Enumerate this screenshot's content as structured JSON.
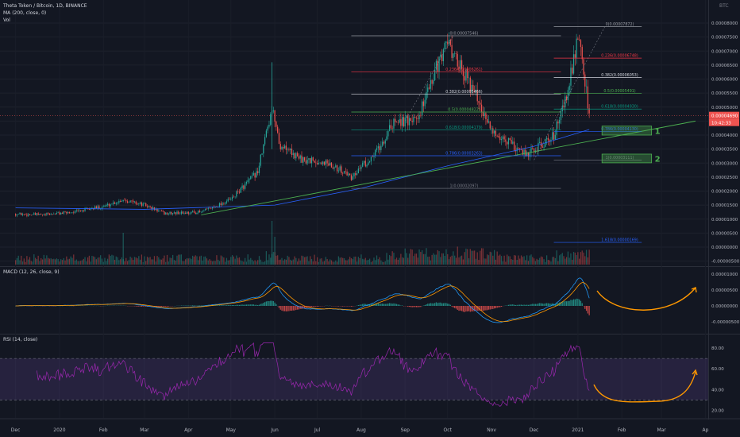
{
  "header": {
    "title": "Theta Token / Bitcoin, 1D, BINANCE",
    "ma_label": "MA (200, close, 0)",
    "vol_label": "Vol",
    "currency": "BTC"
  },
  "last_price": {
    "value": "0.00004690",
    "countdown": "10:42:33"
  },
  "chart_data": [
    {
      "type": "candlestick",
      "name": "THETABTC",
      "xlabels": [
        "Dec",
        "2020",
        "Feb",
        "Mar",
        "Apr",
        "May",
        "Jun",
        "Jul",
        "Aug",
        "Sep",
        "Oct",
        "Nov",
        "Dec",
        "2021",
        "Feb",
        "Mar",
        "Ap"
      ],
      "y_ticks": [
        "0.00008000",
        "0.00007500",
        "0.00007000",
        "0.00006500",
        "0.00006000",
        "0.00005500",
        "0.00005000",
        "0.00004500",
        "0.00004000",
        "0.00003500",
        "0.00003000",
        "0.00002500",
        "0.00002000",
        "0.00001500",
        "0.00001000",
        "0.00000500",
        "0.00000000",
        "-0.00000500"
      ],
      "price_path": [
        {
          "date": "2019-12-01",
          "value": 1.18e-05
        },
        {
          "date": "2019-12-20",
          "value": 1.15e-05
        },
        {
          "date": "2020-01-10",
          "value": 1.25e-05
        },
        {
          "date": "2020-02-01",
          "value": 1.45e-05
        },
        {
          "date": "2020-02-15",
          "value": 1.7e-05
        },
        {
          "date": "2020-03-01",
          "value": 1.5e-05
        },
        {
          "date": "2020-03-15",
          "value": 1.2e-05
        },
        {
          "date": "2020-04-10",
          "value": 1.25e-05
        },
        {
          "date": "2020-05-01",
          "value": 1.7e-05
        },
        {
          "date": "2020-05-20",
          "value": 2.7e-05
        },
        {
          "date": "2020-05-30",
          "value": 5e-05
        },
        {
          "date": "2020-06-05",
          "value": 3.6e-05
        },
        {
          "date": "2020-06-20",
          "value": 3.1e-05
        },
        {
          "date": "2020-07-10",
          "value": 3e-05
        },
        {
          "date": "2020-07-25",
          "value": 2.5e-05
        },
        {
          "date": "2020-08-10",
          "value": 3.3e-05
        },
        {
          "date": "2020-08-25",
          "value": 4.5e-05
        },
        {
          "date": "2020-09-10",
          "value": 4.5e-05
        },
        {
          "date": "2020-09-20",
          "value": 6.1e-05
        },
        {
          "date": "2020-10-01",
          "value": 7.2e-05
        },
        {
          "date": "2020-10-10",
          "value": 6.5e-05
        },
        {
          "date": "2020-10-20",
          "value": 5.5e-05
        },
        {
          "date": "2020-11-01",
          "value": 4.2e-05
        },
        {
          "date": "2020-11-15",
          "value": 3.7e-05
        },
        {
          "date": "2020-11-25",
          "value": 3.3e-05
        },
        {
          "date": "2020-12-05",
          "value": 3.6e-05
        },
        {
          "date": "2020-12-15",
          "value": 4e-05
        },
        {
          "date": "2020-12-25",
          "value": 5.6e-05
        },
        {
          "date": "2021-01-01",
          "value": 7.6e-05
        },
        {
          "date": "2021-01-05",
          "value": 6.4e-05
        },
        {
          "date": "2021-01-09",
          "value": 4.69e-05
        }
      ],
      "ma200_path": [
        {
          "date": "2019-12-01",
          "value": 1.4e-05
        },
        {
          "date": "2020-03-01",
          "value": 1.35e-05
        },
        {
          "date": "2020-06-01",
          "value": 1.5e-05
        },
        {
          "date": "2020-08-01",
          "value": 2.1e-05
        },
        {
          "date": "2020-10-01",
          "value": 2.9e-05
        },
        {
          "date": "2020-12-01",
          "value": 3.6e-05
        },
        {
          "date": "2021-01-09",
          "value": 4.2e-05
        }
      ],
      "trendline": {
        "start": {
          "date": "2020-04-10",
          "value": 1.15e-05
        },
        "end": {
          "date": "2021-03-25",
          "value": 4.5e-05
        }
      },
      "fib_set_1": [
        {
          "label": "0(0.00007546)",
          "value": 7.546e-05,
          "color": "#9598a1"
        },
        {
          "label": "0.236(0.00006261)",
          "value": 6.261e-05,
          "color": "#f23645"
        },
        {
          "label": "0.382(0.00005466)",
          "value": 5.466e-05,
          "color": "#d1d4dc"
        },
        {
          "label": "0.5(0.00004822)",
          "value": 4.822e-05,
          "color": "#4caf50"
        },
        {
          "label": "0.618(0.00004179)",
          "value": 4.179e-05,
          "color": "#089981"
        },
        {
          "label": "0.786(0.00003263)",
          "value": 3.263e-05,
          "color": "#2962ff"
        },
        {
          "label": "1(0.00002097)",
          "value": 2.097e-05,
          "color": "#787b86"
        }
      ],
      "fib_set_2": [
        {
          "label": "0(0.00007872)",
          "value": 7.872e-05,
          "color": "#9598a1"
        },
        {
          "label": "0.236(0.00006748)",
          "value": 6.748e-05,
          "color": "#f23645"
        },
        {
          "label": "0.382(0.00006053)",
          "value": 6.053e-05,
          "color": "#d1d4dc"
        },
        {
          "label": "0.5(0.00005491)",
          "value": 5.491e-05,
          "color": "#4caf50"
        },
        {
          "label": "0.618(0.00004930)",
          "value": 4.93e-05,
          "color": "#089981"
        },
        {
          "label": "0.786(0.00004130)",
          "value": 4.13e-05,
          "color": "#2962ff"
        },
        {
          "label": "1(0.00003111)",
          "value": 3.111e-05,
          "color": "#787b86"
        },
        {
          "label": "1.618(0.00000169)",
          "value": 1.69e-06,
          "color": "#2962ff"
        }
      ],
      "zones": [
        {
          "label": "1",
          "from": 4e-05,
          "to": 4.32e-05
        },
        {
          "label": "2",
          "from": 3.01e-05,
          "to": 3.32e-05
        }
      ]
    },
    {
      "type": "line",
      "name": "MACD",
      "title": "MACD (12, 26, close, 9)",
      "y_ticks": [
        "0.00001000",
        "0.00000500",
        "0.00000000",
        "-0.00000500"
      ],
      "annotation": "projected curve up"
    },
    {
      "type": "line",
      "name": "RSI",
      "title": "RSI (14, close)",
      "y_ticks": [
        "80.00",
        "60.00",
        "40.00",
        "20.00"
      ],
      "bands": [
        70,
        30
      ],
      "annotation": "projected curve up"
    }
  ],
  "colors": {
    "up": "#26a69a",
    "down": "#ef5350",
    "ma": "#2962ff",
    "trend": "#4caf50",
    "macd": "#2196f3",
    "signal": "#ff9800",
    "rsi": "#9c27b0",
    "arrow": "#ff9800",
    "zone": "#4caf50"
  }
}
